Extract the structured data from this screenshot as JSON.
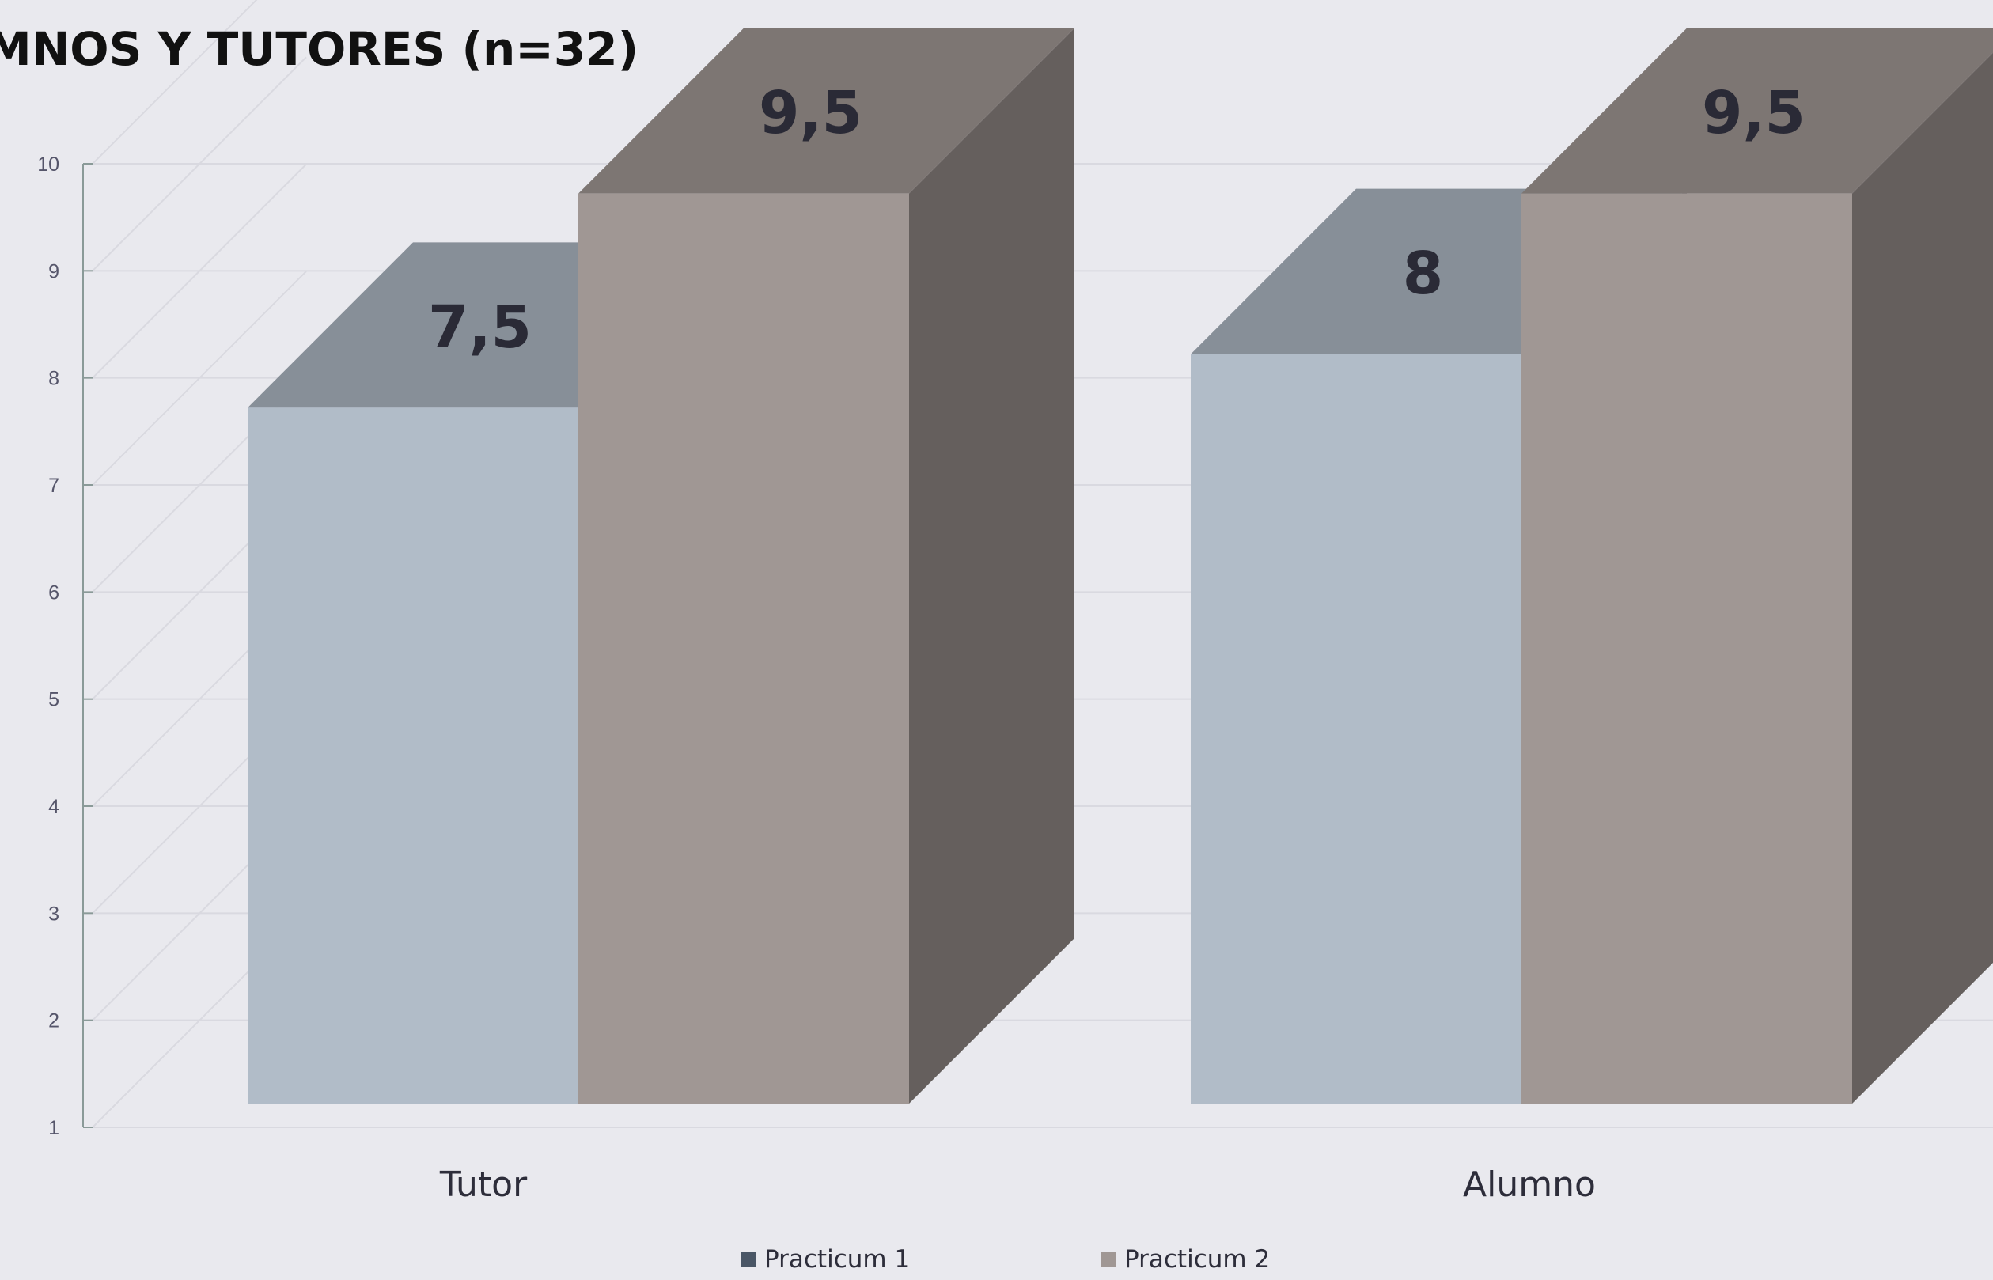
{
  "chart_data": {
    "type": "bar",
    "title": "MNOS Y TUTORES (n=32)",
    "categories": [
      "Tutor",
      "Alumno"
    ],
    "series": [
      {
        "name": "Practicum 1",
        "values": [
          7.5,
          8
        ],
        "labels": [
          "7,5",
          "8"
        ],
        "color": "#b1bcc8"
      },
      {
        "name": "Practicum 2",
        "values": [
          9.5,
          9.5
        ],
        "labels": [
          "9,5",
          "9,5"
        ],
        "color": "#a09794"
      }
    ],
    "ylim": [
      1,
      10
    ],
    "yticks": [
      1,
      2,
      3,
      4,
      5,
      6,
      7,
      8,
      9,
      10
    ],
    "grid": true,
    "three_d": true,
    "legend_position": "bottom",
    "legend_colors": [
      "#4a5666",
      "#a09794"
    ]
  }
}
